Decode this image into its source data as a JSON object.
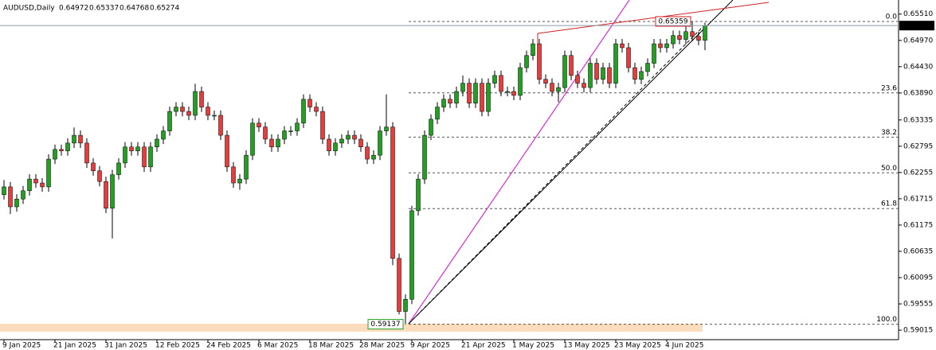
{
  "chart_data": {
    "type": "candlestick",
    "symbol": "AUDUSD,Daily",
    "categories": [
      "9 Jan 2025",
      null,
      null,
      null,
      null,
      null,
      null,
      null,
      "21 Jan 2025",
      null,
      null,
      null,
      null,
      null,
      null,
      null,
      "31 Jan 2025",
      null,
      null,
      null,
      null,
      null,
      null,
      null,
      "12 Feb 2025",
      null,
      null,
      null,
      null,
      null,
      null,
      null,
      "24 Feb 2025",
      null,
      null,
      null,
      null,
      null,
      null,
      null,
      "6 Mar 2025",
      null,
      null,
      null,
      null,
      null,
      null,
      null,
      "18 Mar 2025",
      null,
      null,
      null,
      null,
      null,
      null,
      null,
      "28 Mar 2025",
      null,
      null,
      null,
      null,
      null,
      null,
      null,
      "9 Apr 2025",
      null,
      null,
      null,
      null,
      null,
      null,
      null,
      "21 Apr 2025",
      null,
      null,
      null,
      null,
      null,
      null,
      null,
      "1 May 2025",
      null,
      null,
      null,
      null,
      null,
      null,
      null,
      "13 May 2025",
      null,
      null,
      null,
      null,
      null,
      null,
      null,
      "23 May 2025",
      null,
      null,
      null,
      null,
      null,
      null,
      null,
      "4 Jun 2025",
      null,
      null,
      null,
      null,
      null,
      null
    ],
    "open": [
      0.618,
      0.6196,
      0.6155,
      0.6171,
      0.6188,
      0.6212,
      0.6204,
      0.6196,
      0.6253,
      0.6273,
      0.627,
      0.6286,
      0.6302,
      0.6286,
      0.6245,
      0.6229,
      0.6207,
      0.6152,
      0.6221,
      0.6245,
      0.6278,
      0.627,
      0.6278,
      0.6237,
      0.6278,
      0.6294,
      0.6311,
      0.6351,
      0.636,
      0.6351,
      0.6343,
      0.6392,
      0.636,
      0.6343,
      0.6343,
      0.6302,
      0.6237,
      0.6204,
      0.6212,
      0.6261,
      0.6327,
      0.6319,
      0.6294,
      0.6278,
      0.6294,
      0.6311,
      0.6311,
      0.6327,
      0.6376,
      0.636,
      0.6351,
      0.6294,
      0.627,
      0.6286,
      0.6294,
      0.6302,
      0.6294,
      0.6278,
      0.6253,
      0.6261,
      0.6311,
      0.6319,
      0.6049,
      0.594,
      0.5965,
      0.6147,
      0.6212,
      0.6302,
      0.6335,
      0.636,
      0.6376,
      0.6368,
      0.6392,
      0.6409,
      0.6368,
      0.6409,
      0.6351,
      0.6409,
      0.6425,
      0.6392,
      0.6392,
      0.6384,
      0.6441,
      0.6466,
      0.649,
      0.6417,
      0.6409,
      0.6392,
      0.64,
      0.6466,
      0.6425,
      0.6409,
      0.64,
      0.645,
      0.6417,
      0.6441,
      0.6409,
      0.649,
      0.6482,
      0.6441,
      0.6417,
      0.6433,
      0.645,
      0.649,
      0.6482,
      0.649,
      0.6507,
      0.6499,
      0.6515,
      0.6505,
      0.64972
    ],
    "high": [
      0.621,
      0.6206,
      0.6181,
      0.6198,
      0.6222,
      0.6222,
      0.6214,
      0.6263,
      0.6283,
      0.6283,
      0.6296,
      0.6318,
      0.6312,
      0.6296,
      0.6255,
      0.6239,
      0.6217,
      0.6231,
      0.6255,
      0.6288,
      0.6288,
      0.6288,
      0.6288,
      0.6288,
      0.6304,
      0.6321,
      0.6361,
      0.637,
      0.637,
      0.6361,
      0.6408,
      0.6402,
      0.637,
      0.6353,
      0.6353,
      0.6312,
      0.6247,
      0.6222,
      0.6271,
      0.6337,
      0.6337,
      0.6329,
      0.6304,
      0.6304,
      0.6321,
      0.6321,
      0.6337,
      0.6386,
      0.6386,
      0.637,
      0.6361,
      0.6304,
      0.6296,
      0.6304,
      0.6312,
      0.6312,
      0.6304,
      0.6288,
      0.6271,
      0.6321,
      0.6386,
      0.6329,
      0.6059,
      0.5975,
      0.6157,
      0.6222,
      0.6312,
      0.6345,
      0.637,
      0.6386,
      0.6386,
      0.6402,
      0.6425,
      0.6419,
      0.6419,
      0.6419,
      0.6419,
      0.6435,
      0.6435,
      0.6402,
      0.6402,
      0.6451,
      0.6476,
      0.65,
      0.65,
      0.6427,
      0.6419,
      0.641,
      0.6476,
      0.6476,
      0.6435,
      0.6419,
      0.646,
      0.646,
      0.6451,
      0.6451,
      0.65,
      0.65,
      0.6492,
      0.6451,
      0.6443,
      0.646,
      0.65,
      0.65,
      0.65,
      0.6517,
      0.6517,
      0.6525,
      0.65359,
      0.6515,
      0.65337
    ],
    "low": [
      0.617,
      0.614,
      0.6145,
      0.6161,
      0.6178,
      0.6194,
      0.6186,
      0.6186,
      0.6243,
      0.626,
      0.626,
      0.6276,
      0.6276,
      0.6235,
      0.6219,
      0.6197,
      0.6142,
      0.609,
      0.6211,
      0.6235,
      0.626,
      0.626,
      0.6227,
      0.6227,
      0.6268,
      0.6284,
      0.6301,
      0.6341,
      0.6341,
      0.6333,
      0.6333,
      0.635,
      0.6333,
      0.6333,
      0.6292,
      0.6227,
      0.6194,
      0.619,
      0.6202,
      0.6251,
      0.6309,
      0.6284,
      0.6268,
      0.6268,
      0.6284,
      0.6301,
      0.6301,
      0.6317,
      0.635,
      0.6341,
      0.6284,
      0.626,
      0.626,
      0.6276,
      0.6284,
      0.6284,
      0.6268,
      0.6243,
      0.6243,
      0.6251,
      0.6301,
      0.6035,
      0.5934,
      0.59137,
      0.5955,
      0.6137,
      0.6202,
      0.6292,
      0.6325,
      0.635,
      0.6358,
      0.6358,
      0.6382,
      0.6358,
      0.6358,
      0.6341,
      0.6341,
      0.6399,
      0.6382,
      0.6382,
      0.6374,
      0.6374,
      0.6431,
      0.6456,
      0.6407,
      0.6399,
      0.6382,
      0.637,
      0.639,
      0.6415,
      0.6399,
      0.639,
      0.639,
      0.6407,
      0.6407,
      0.6399,
      0.6399,
      0.6472,
      0.6431,
      0.6407,
      0.6407,
      0.6423,
      0.644,
      0.6472,
      0.6472,
      0.648,
      0.6489,
      0.6489,
      0.6495,
      0.6487,
      0.64768
    ],
    "close": [
      0.6196,
      0.6155,
      0.6171,
      0.6188,
      0.6212,
      0.6204,
      0.6196,
      0.6253,
      0.6273,
      0.627,
      0.6286,
      0.6302,
      0.6286,
      0.6245,
      0.6229,
      0.6207,
      0.6152,
      0.6221,
      0.6245,
      0.6278,
      0.627,
      0.6278,
      0.6237,
      0.6278,
      0.6294,
      0.6311,
      0.6351,
      0.636,
      0.6351,
      0.6343,
      0.6392,
      0.636,
      0.6343,
      0.6343,
      0.6302,
      0.6237,
      0.6204,
      0.6212,
      0.6261,
      0.6327,
      0.6319,
      0.6294,
      0.6278,
      0.6294,
      0.6311,
      0.6311,
      0.6327,
      0.6376,
      0.636,
      0.6351,
      0.6294,
      0.627,
      0.6286,
      0.6294,
      0.6302,
      0.6294,
      0.6278,
      0.6253,
      0.6261,
      0.6311,
      0.6319,
      0.6049,
      0.594,
      0.5965,
      0.6147,
      0.6212,
      0.6302,
      0.6335,
      0.636,
      0.6376,
      0.6368,
      0.6392,
      0.6409,
      0.6368,
      0.6409,
      0.6351,
      0.6409,
      0.6425,
      0.6392,
      0.6392,
      0.6384,
      0.6441,
      0.6466,
      0.649,
      0.6417,
      0.6409,
      0.6392,
      0.64,
      0.6466,
      0.6425,
      0.6409,
      0.64,
      0.645,
      0.6417,
      0.6441,
      0.6409,
      0.649,
      0.6482,
      0.6441,
      0.6417,
      0.6433,
      0.645,
      0.649,
      0.6482,
      0.649,
      0.6507,
      0.6499,
      0.6515,
      0.6505,
      0.64972,
      0.65274
    ],
    "bull_color": "#22a022",
    "bear_color": "#e83c3c",
    "ylim": [
      0.5882,
      0.658
    ],
    "yticks": [
      {
        "value": 0.6551,
        "label": "0.65510"
      },
      {
        "value": 0.6497,
        "label": "0.64970"
      },
      {
        "value": 0.6443,
        "label": "0.64430"
      },
      {
        "value": 0.6389,
        "label": "0.63890"
      },
      0.63335,
      0.62795,
      0.62255,
      0.61715,
      0.61175,
      0.60635,
      0.60095,
      0.59555,
      0.59015
    ],
    "fibo": {
      "high": 0.65359,
      "low": 0.59137,
      "color": "#555555",
      "levels": [
        {
          "value": 0,
          "label": "0.0"
        },
        23.6,
        38.2,
        {
          "value": 50,
          "label": "50.0"
        },
        61.8,
        {
          "value": 100,
          "label": "100.0"
        }
      ]
    }
  }
}
